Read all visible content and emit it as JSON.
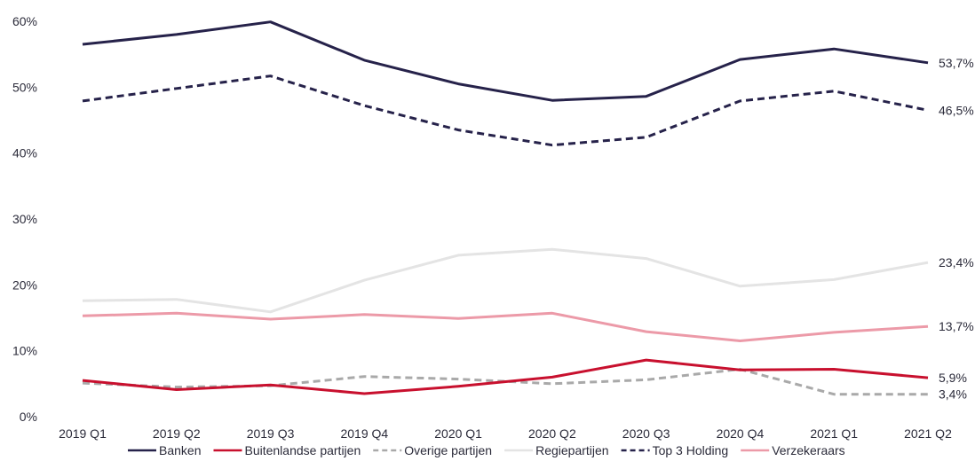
{
  "chart_data": {
    "type": "line",
    "categories": [
      "2019 Q1",
      "2019 Q2",
      "2019 Q3",
      "2019 Q4",
      "2020 Q1",
      "2020 Q2",
      "2020 Q3",
      "2020 Q4",
      "2021 Q1",
      "2021 Q2"
    ],
    "ylim": [
      0,
      60
    ],
    "yticks": [
      "0%",
      "10%",
      "20%",
      "30%",
      "40%",
      "50%",
      "60%"
    ],
    "grid": false,
    "legend_position": "bottom",
    "series": [
      {
        "name": "Banken",
        "color": "#26224a",
        "dash": "solid",
        "values": [
          56.5,
          58,
          59.9,
          54.1,
          50.5,
          48.0,
          48.6,
          54.2,
          55.8,
          53.7
        ],
        "end_label": "53,7%"
      },
      {
        "name": "Buitenlandse partijen",
        "color": "#c8102e",
        "dash": "solid",
        "values": [
          5.5,
          4.1,
          4.8,
          3.5,
          4.6,
          6.0,
          8.6,
          7.1,
          7.2,
          5.9
        ],
        "end_label": "5,9%"
      },
      {
        "name": "Overige partijen",
        "color": "#a9a9a9",
        "dash": "dashed",
        "values": [
          5.1,
          4.5,
          4.7,
          6.1,
          5.7,
          5.0,
          5.6,
          7.2,
          3.4,
          3.4
        ],
        "end_label": "3,4%"
      },
      {
        "name": "Regiepartijen",
        "color": "#e4e4e4",
        "dash": "solid",
        "values": [
          17.6,
          17.8,
          15.9,
          20.7,
          24.5,
          25.4,
          24.0,
          19.8,
          20.8,
          23.4
        ],
        "end_label": "23,4%"
      },
      {
        "name": "Top  3  Holding",
        "color": "#26224a",
        "dash": "dashed",
        "values": [
          47.9,
          49.8,
          51.7,
          47.2,
          43.5,
          41.2,
          42.4,
          47.9,
          49.4,
          46.5
        ],
        "end_label": "46,5%"
      },
      {
        "name": "Verzekeraars",
        "color": "#ec9aa8",
        "dash": "solid",
        "values": [
          15.3,
          15.7,
          14.8,
          15.5,
          14.9,
          15.7,
          12.9,
          11.5,
          12.8,
          13.7
        ],
        "end_label": "13,7%"
      }
    ]
  }
}
